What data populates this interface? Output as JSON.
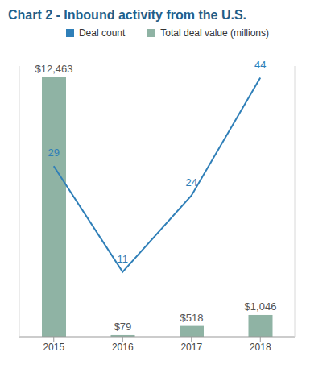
{
  "chart_data": {
    "type": "bar",
    "title": "Chart 2 - Inbound activity from the U.S.",
    "categories": [
      "2015",
      "2016",
      "2017",
      "2018"
    ],
    "series": [
      {
        "name": "Deal count",
        "type": "line",
        "axis": "y2",
        "color": "#2f7fb8",
        "marker": "none",
        "values": [
          29,
          11,
          24,
          44
        ]
      },
      {
        "name": "Total deal value (millions)",
        "type": "bar",
        "color": "#8fb3a4",
        "values": [
          12463,
          79,
          518,
          1046
        ],
        "value_labels": [
          "$12,463",
          "$79",
          "$518",
          "$1,046"
        ]
      }
    ],
    "ylim": [
      0,
      13000
    ],
    "y2lim": [
      0,
      46
    ],
    "legend": "top",
    "data_labels": true,
    "tick_labels": "x",
    "grid": false
  }
}
